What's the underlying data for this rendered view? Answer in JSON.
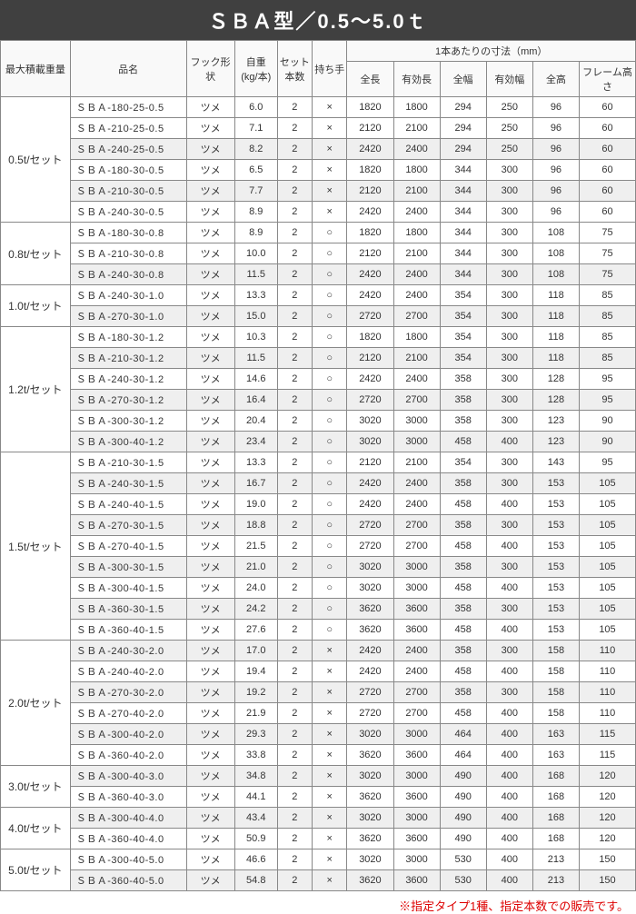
{
  "title": "ＳＢＡ型／0.5～5.0ｔ",
  "note": "※指定タイプ1種、指定本数での販売です。",
  "headers": {
    "capacity": "最大積載重量",
    "name": "品名",
    "hook": "フック形状",
    "weight_l1": "自重",
    "weight_l2": "(kg/本)",
    "setqty_l1": "セット",
    "setqty_l2": "本数",
    "handle": "持ち手",
    "dim_group": "1本あたりの寸法（mm）",
    "dim1": "全長",
    "dim2": "有効長",
    "dim3": "全幅",
    "dim4": "有効幅",
    "dim5": "全高",
    "dim6": "フレーム高さ"
  },
  "groups": [
    {
      "cap": "0.5t/セット",
      "rows": [
        {
          "n": "ＳＢＡ-180-25-0.5",
          "h": "ツメ",
          "w": "6.0",
          "s": "2",
          "hd": "×",
          "d": [
            "1820",
            "1800",
            "294",
            "250",
            "96",
            "60"
          ],
          "shade": false
        },
        {
          "n": "ＳＢＡ-210-25-0.5",
          "h": "ツメ",
          "w": "7.1",
          "s": "2",
          "hd": "×",
          "d": [
            "2120",
            "2100",
            "294",
            "250",
            "96",
            "60"
          ],
          "shade": false
        },
        {
          "n": "ＳＢＡ-240-25-0.5",
          "h": "ツメ",
          "w": "8.2",
          "s": "2",
          "hd": "×",
          "d": [
            "2420",
            "2400",
            "294",
            "250",
            "96",
            "60"
          ],
          "shade": true
        },
        {
          "n": "ＳＢＡ-180-30-0.5",
          "h": "ツメ",
          "w": "6.5",
          "s": "2",
          "hd": "×",
          "d": [
            "1820",
            "1800",
            "344",
            "300",
            "96",
            "60"
          ],
          "shade": false
        },
        {
          "n": "ＳＢＡ-210-30-0.5",
          "h": "ツメ",
          "w": "7.7",
          "s": "2",
          "hd": "×",
          "d": [
            "2120",
            "2100",
            "344",
            "300",
            "96",
            "60"
          ],
          "shade": true
        },
        {
          "n": "ＳＢＡ-240-30-0.5",
          "h": "ツメ",
          "w": "8.9",
          "s": "2",
          "hd": "×",
          "d": [
            "2420",
            "2400",
            "344",
            "300",
            "96",
            "60"
          ],
          "shade": false
        }
      ]
    },
    {
      "cap": "0.8t/セット",
      "rows": [
        {
          "n": "ＳＢＡ-180-30-0.8",
          "h": "ツメ",
          "w": "8.9",
          "s": "2",
          "hd": "○",
          "d": [
            "1820",
            "1800",
            "344",
            "300",
            "108",
            "75"
          ],
          "shade": false
        },
        {
          "n": "ＳＢＡ-210-30-0.8",
          "h": "ツメ",
          "w": "10.0",
          "s": "2",
          "hd": "○",
          "d": [
            "2120",
            "2100",
            "344",
            "300",
            "108",
            "75"
          ],
          "shade": false
        },
        {
          "n": "ＳＢＡ-240-30-0.8",
          "h": "ツメ",
          "w": "11.5",
          "s": "2",
          "hd": "○",
          "d": [
            "2420",
            "2400",
            "344",
            "300",
            "108",
            "75"
          ],
          "shade": true
        }
      ]
    },
    {
      "cap": "1.0t/セット",
      "rows": [
        {
          "n": "ＳＢＡ-240-30-1.0",
          "h": "ツメ",
          "w": "13.3",
          "s": "2",
          "hd": "○",
          "d": [
            "2420",
            "2400",
            "354",
            "300",
            "118",
            "85"
          ],
          "shade": false
        },
        {
          "n": "ＳＢＡ-270-30-1.0",
          "h": "ツメ",
          "w": "15.0",
          "s": "2",
          "hd": "○",
          "d": [
            "2720",
            "2700",
            "354",
            "300",
            "118",
            "85"
          ],
          "shade": true
        }
      ]
    },
    {
      "cap": "1.2t/セット",
      "rows": [
        {
          "n": "ＳＢＡ-180-30-1.2",
          "h": "ツメ",
          "w": "10.3",
          "s": "2",
          "hd": "○",
          "d": [
            "1820",
            "1800",
            "354",
            "300",
            "118",
            "85"
          ],
          "shade": false
        },
        {
          "n": "ＳＢＡ-210-30-1.2",
          "h": "ツメ",
          "w": "11.5",
          "s": "2",
          "hd": "○",
          "d": [
            "2120",
            "2100",
            "354",
            "300",
            "118",
            "85"
          ],
          "shade": true
        },
        {
          "n": "ＳＢＡ-240-30-1.2",
          "h": "ツメ",
          "w": "14.6",
          "s": "2",
          "hd": "○",
          "d": [
            "2420",
            "2400",
            "358",
            "300",
            "128",
            "95"
          ],
          "shade": false
        },
        {
          "n": "ＳＢＡ-270-30-1.2",
          "h": "ツメ",
          "w": "16.4",
          "s": "2",
          "hd": "○",
          "d": [
            "2720",
            "2700",
            "358",
            "300",
            "128",
            "95"
          ],
          "shade": true
        },
        {
          "n": "ＳＢＡ-300-30-1.2",
          "h": "ツメ",
          "w": "20.4",
          "s": "2",
          "hd": "○",
          "d": [
            "3020",
            "3000",
            "358",
            "300",
            "123",
            "90"
          ],
          "shade": false
        },
        {
          "n": "ＳＢＡ-300-40-1.2",
          "h": "ツメ",
          "w": "23.4",
          "s": "2",
          "hd": "○",
          "d": [
            "3020",
            "3000",
            "458",
            "400",
            "123",
            "90"
          ],
          "shade": true
        }
      ]
    },
    {
      "cap": "1.5t/セット",
      "rows": [
        {
          "n": "ＳＢＡ-210-30-1.5",
          "h": "ツメ",
          "w": "13.3",
          "s": "2",
          "hd": "○",
          "d": [
            "2120",
            "2100",
            "354",
            "300",
            "143",
            "95"
          ],
          "shade": false
        },
        {
          "n": "ＳＢＡ-240-30-1.5",
          "h": "ツメ",
          "w": "16.7",
          "s": "2",
          "hd": "○",
          "d": [
            "2420",
            "2400",
            "358",
            "300",
            "153",
            "105"
          ],
          "shade": true
        },
        {
          "n": "ＳＢＡ-240-40-1.5",
          "h": "ツメ",
          "w": "19.0",
          "s": "2",
          "hd": "○",
          "d": [
            "2420",
            "2400",
            "458",
            "400",
            "153",
            "105"
          ],
          "shade": false
        },
        {
          "n": "ＳＢＡ-270-30-1.5",
          "h": "ツメ",
          "w": "18.8",
          "s": "2",
          "hd": "○",
          "d": [
            "2720",
            "2700",
            "358",
            "300",
            "153",
            "105"
          ],
          "shade": true
        },
        {
          "n": "ＳＢＡ-270-40-1.5",
          "h": "ツメ",
          "w": "21.5",
          "s": "2",
          "hd": "○",
          "d": [
            "2720",
            "2700",
            "458",
            "400",
            "153",
            "105"
          ],
          "shade": false
        },
        {
          "n": "ＳＢＡ-300-30-1.5",
          "h": "ツメ",
          "w": "21.0",
          "s": "2",
          "hd": "○",
          "d": [
            "3020",
            "3000",
            "358",
            "300",
            "153",
            "105"
          ],
          "shade": true
        },
        {
          "n": "ＳＢＡ-300-40-1.5",
          "h": "ツメ",
          "w": "24.0",
          "s": "2",
          "hd": "○",
          "d": [
            "3020",
            "3000",
            "458",
            "400",
            "153",
            "105"
          ],
          "shade": false
        },
        {
          "n": "ＳＢＡ-360-30-1.5",
          "h": "ツメ",
          "w": "24.2",
          "s": "2",
          "hd": "○",
          "d": [
            "3620",
            "3600",
            "358",
            "300",
            "153",
            "105"
          ],
          "shade": true
        },
        {
          "n": "ＳＢＡ-360-40-1.5",
          "h": "ツメ",
          "w": "27.6",
          "s": "2",
          "hd": "○",
          "d": [
            "3620",
            "3600",
            "458",
            "400",
            "153",
            "105"
          ],
          "shade": false
        }
      ]
    },
    {
      "cap": "2.0t/セット",
      "rows": [
        {
          "n": "ＳＢＡ-240-30-2.0",
          "h": "ツメ",
          "w": "17.0",
          "s": "2",
          "hd": "×",
          "d": [
            "2420",
            "2400",
            "358",
            "300",
            "158",
            "110"
          ],
          "shade": true
        },
        {
          "n": "ＳＢＡ-240-40-2.0",
          "h": "ツメ",
          "w": "19.4",
          "s": "2",
          "hd": "×",
          "d": [
            "2420",
            "2400",
            "458",
            "400",
            "158",
            "110"
          ],
          "shade": false
        },
        {
          "n": "ＳＢＡ-270-30-2.0",
          "h": "ツメ",
          "w": "19.2",
          "s": "2",
          "hd": "×",
          "d": [
            "2720",
            "2700",
            "358",
            "300",
            "158",
            "110"
          ],
          "shade": true
        },
        {
          "n": "ＳＢＡ-270-40-2.0",
          "h": "ツメ",
          "w": "21.9",
          "s": "2",
          "hd": "×",
          "d": [
            "2720",
            "2700",
            "458",
            "400",
            "158",
            "110"
          ],
          "shade": false
        },
        {
          "n": "ＳＢＡ-300-40-2.0",
          "h": "ツメ",
          "w": "29.3",
          "s": "2",
          "hd": "×",
          "d": [
            "3020",
            "3000",
            "464",
            "400",
            "163",
            "115"
          ],
          "shade": true
        },
        {
          "n": "ＳＢＡ-360-40-2.0",
          "h": "ツメ",
          "w": "33.8",
          "s": "2",
          "hd": "×",
          "d": [
            "3620",
            "3600",
            "464",
            "400",
            "163",
            "115"
          ],
          "shade": false
        }
      ]
    },
    {
      "cap": "3.0t/セット",
      "rows": [
        {
          "n": "ＳＢＡ-300-40-3.0",
          "h": "ツメ",
          "w": "34.8",
          "s": "2",
          "hd": "×",
          "d": [
            "3020",
            "3000",
            "490",
            "400",
            "168",
            "120"
          ],
          "shade": true
        },
        {
          "n": "ＳＢＡ-360-40-3.0",
          "h": "ツメ",
          "w": "44.1",
          "s": "2",
          "hd": "×",
          "d": [
            "3620",
            "3600",
            "490",
            "400",
            "168",
            "120"
          ],
          "shade": false
        }
      ]
    },
    {
      "cap": "4.0t/セット",
      "rows": [
        {
          "n": "ＳＢＡ-300-40-4.0",
          "h": "ツメ",
          "w": "43.4",
          "s": "2",
          "hd": "×",
          "d": [
            "3020",
            "3000",
            "490",
            "400",
            "168",
            "120"
          ],
          "shade": true
        },
        {
          "n": "ＳＢＡ-360-40-4.0",
          "h": "ツメ",
          "w": "50.9",
          "s": "2",
          "hd": "×",
          "d": [
            "3620",
            "3600",
            "490",
            "400",
            "168",
            "120"
          ],
          "shade": false
        }
      ]
    },
    {
      "cap": "5.0t/セット",
      "rows": [
        {
          "n": "ＳＢＡ-300-40-5.0",
          "h": "ツメ",
          "w": "46.6",
          "s": "2",
          "hd": "×",
          "d": [
            "3020",
            "3000",
            "530",
            "400",
            "213",
            "150"
          ],
          "shade": false
        },
        {
          "n": "ＳＢＡ-360-40-5.0",
          "h": "ツメ",
          "w": "54.8",
          "s": "2",
          "hd": "×",
          "d": [
            "3620",
            "3600",
            "530",
            "400",
            "213",
            "150"
          ],
          "shade": true
        }
      ]
    }
  ]
}
